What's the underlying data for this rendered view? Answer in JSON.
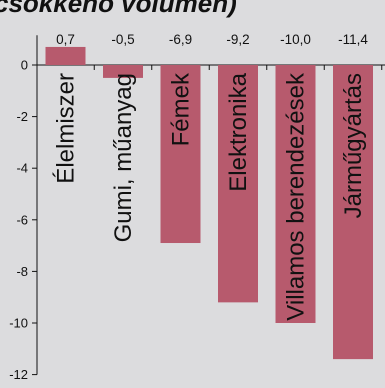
{
  "chart_data": {
    "type": "bar",
    "title": "(százalékos változás, folyó áron/ konstans volumen)",
    "title_visible": "csokkenő volumen)",
    "categories": [
      "Élelmiszer",
      "Gumi, műanyag",
      "Fémek",
      "Elektronika",
      "Villamos berendezések",
      "Járműgyártás"
    ],
    "values": [
      0.7,
      -0.5,
      -6.9,
      -9.2,
      -10.0,
      -11.4
    ],
    "value_labels": [
      "0,7",
      "-0,5",
      "-6,9",
      "-9,2",
      "-10,0",
      "-11,4"
    ],
    "ylim": [
      -12,
      1
    ],
    "yticks": [
      0,
      -2,
      -4,
      -6,
      -8,
      -10,
      -12
    ],
    "ytick_labels": [
      "0",
      "-2",
      "-4",
      "-6",
      "-8",
      "-10",
      "-12"
    ],
    "bar_color": "#b75a6d",
    "background": "#dcdcde",
    "grid": false,
    "legend": "none"
  }
}
